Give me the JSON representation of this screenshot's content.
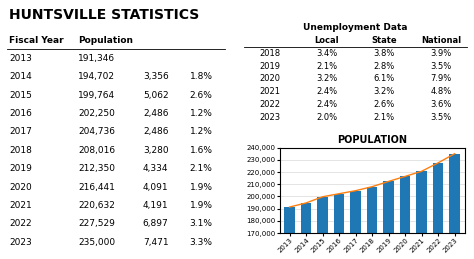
{
  "title": "HUNTSVILLE STATISTICS",
  "chart_data": [
    {
      "type": "table",
      "xlabel": "Fiscal Year",
      "categories": [
        "2013",
        "2014",
        "2015",
        "2016",
        "2017",
        "2018",
        "2019",
        "2020",
        "2021",
        "2022",
        "2023"
      ],
      "series": [
        {
          "name": "Population",
          "values": [
            191346,
            194702,
            199764,
            202250,
            204736,
            208016,
            212350,
            216441,
            220632,
            227529,
            235000
          ],
          "value_labels": [
            "191,346",
            "194,702",
            "199,764",
            "202,250",
            "204,736",
            "208,016",
            "212,350",
            "216,441",
            "220,632",
            "227,529",
            "235,000"
          ]
        },
        {
          "values": [
            null,
            3356,
            5062,
            2486,
            2486,
            3280,
            4334,
            4091,
            4191,
            6897,
            7471
          ],
          "value_labels": [
            null,
            "3,356",
            "5,062",
            "2,486",
            "2,486",
            "3,280",
            "4,334",
            "4,091",
            "4,191",
            "6,897",
            "7,471"
          ]
        },
        {
          "values": [
            null,
            1.8,
            2.6,
            1.2,
            1.2,
            1.6,
            2.1,
            1.9,
            1.9,
            3.1,
            3.3
          ],
          "value_labels": [
            null,
            "1.8%",
            "2.6%",
            "1.2%",
            "1.2%",
            "1.6%",
            "2.1%",
            "1.9%",
            "1.9%",
            "3.1%",
            "3.3%"
          ]
        }
      ]
    },
    {
      "type": "table",
      "title": "Unemployment Data",
      "categories": [
        "2018",
        "2019",
        "2020",
        "2021",
        "2022",
        "2023"
      ],
      "series": [
        {
          "name": "Local",
          "values": [
            3.4,
            2.1,
            3.2,
            2.4,
            2.4,
            2.0
          ],
          "value_labels": [
            "3.4%",
            "2.1%",
            "3.2%",
            "2.4%",
            "2.4%",
            "2.0%"
          ]
        },
        {
          "name": "State",
          "values": [
            3.8,
            2.8,
            6.1,
            3.2,
            2.6,
            2.1
          ],
          "value_labels": [
            "3.8%",
            "2.8%",
            "6.1%",
            "3.2%",
            "2.6%",
            "2.1%"
          ]
        },
        {
          "name": "National",
          "values": [
            3.9,
            3.5,
            7.9,
            4.8,
            3.6,
            3.5
          ],
          "value_labels": [
            "3.9%",
            "3.5%",
            "7.9%",
            "4.8%",
            "3.6%",
            "3.5%"
          ]
        }
      ]
    },
    {
      "type": "bar",
      "title": "POPULATION",
      "categories": [
        "2013",
        "2014",
        "2015",
        "2016",
        "2017",
        "2018",
        "2019",
        "2020",
        "2021",
        "2022",
        "2023"
      ],
      "series": [
        {
          "type": "bar",
          "values": [
            191346,
            194702,
            199764,
            202250,
            204736,
            208016,
            212350,
            216441,
            220632,
            227529,
            235000
          ]
        },
        {
          "type": "line",
          "values": [
            191346,
            194702,
            199764,
            202250,
            204736,
            208016,
            212350,
            216441,
            220632,
            227529,
            235000
          ]
        }
      ],
      "ylim": [
        170000,
        240000
      ],
      "yticks": [
        {
          "value": 170000,
          "label": "170,000"
        },
        {
          "value": 180000,
          "label": "180,000"
        },
        {
          "value": 190000,
          "label": "190,000"
        },
        {
          "value": 200000,
          "label": "200,000"
        },
        {
          "value": 210000,
          "label": "210,000"
        },
        {
          "value": 220000,
          "label": "220,000"
        },
        {
          "value": 230000,
          "label": "230,000"
        },
        {
          "value": 240000,
          "label": "240,000"
        }
      ],
      "grid": true
    }
  ]
}
